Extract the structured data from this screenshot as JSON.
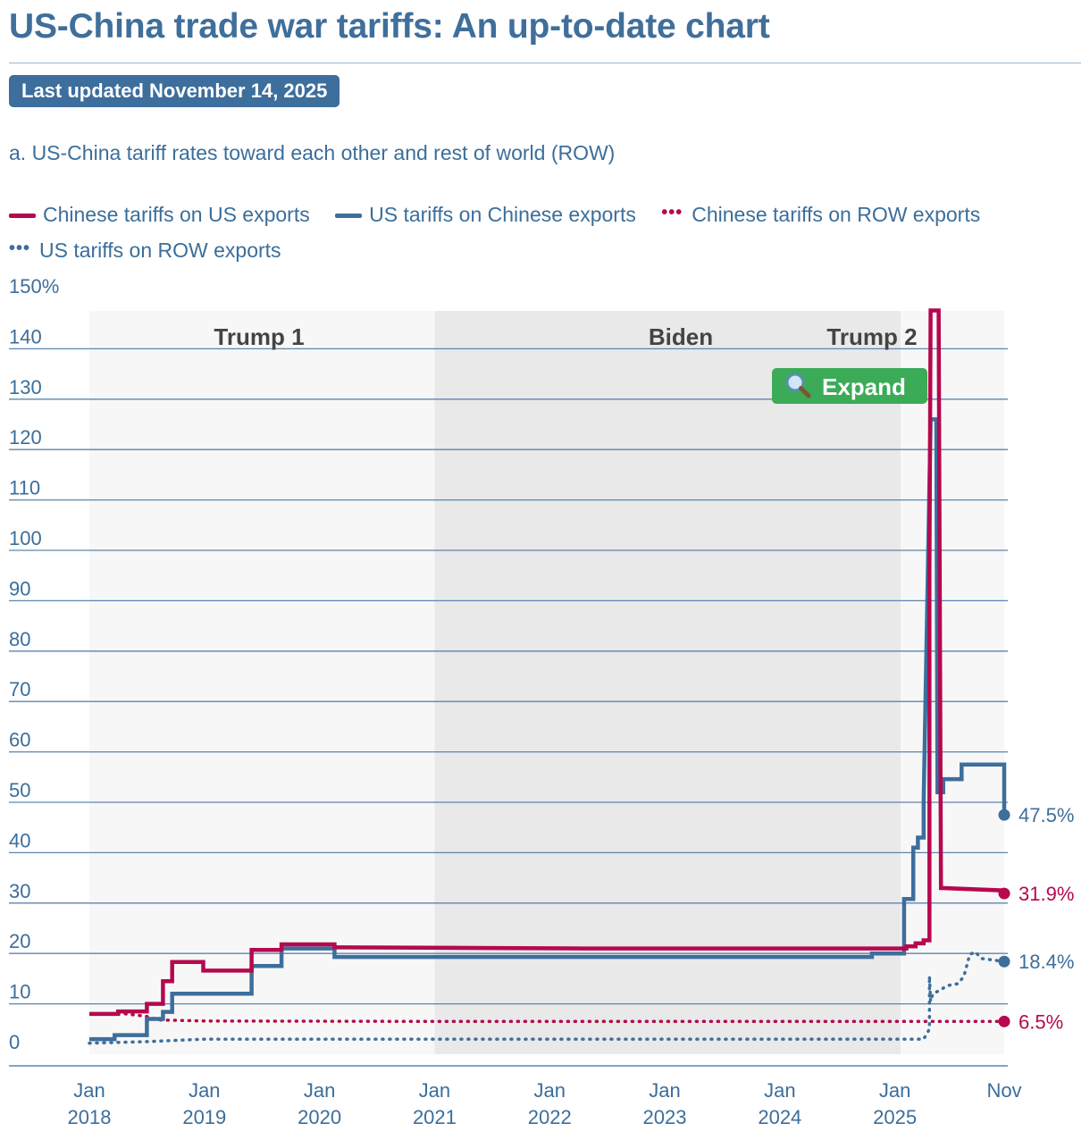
{
  "header": {
    "title": "US-China trade war tariffs: An up-to-date chart",
    "last_updated": "Last updated November 14, 2025",
    "subtitle": "a. US-China tariff rates toward each other and rest of world (ROW)"
  },
  "legend": [
    {
      "label": "Chinese tariffs on US exports",
      "style": "solid",
      "color": "#b5084f"
    },
    {
      "label": "US tariffs on Chinese exports",
      "style": "solid",
      "color": "#3d6e9c"
    },
    {
      "label": "Chinese tariffs on ROW exports",
      "style": "dotted",
      "color": "#b5084f"
    },
    {
      "label": "US tariffs on ROW exports",
      "style": "dotted",
      "color": "#3d6e9c"
    }
  ],
  "expand_button": {
    "icon": "magnifier-icon",
    "label": "Expand"
  },
  "colors": {
    "china": "#b5084f",
    "us": "#3d6e9c",
    "grid": "#5b86ad",
    "panel_light": "#f7f7f7",
    "panel_dark": "#e9e9e9"
  },
  "chart_data": {
    "type": "line",
    "title": "a. US-China tariff rates toward each other and rest of world (ROW)",
    "ylim": [
      0,
      150
    ],
    "y_ticks": [
      {
        "value": 0,
        "label": "0"
      },
      {
        "value": 10,
        "label": "10"
      },
      {
        "value": 20,
        "label": "20"
      },
      {
        "value": 30,
        "label": "30"
      },
      {
        "value": 40,
        "label": "40"
      },
      {
        "value": 50,
        "label": "50"
      },
      {
        "value": 60,
        "label": "60"
      },
      {
        "value": 70,
        "label": "70"
      },
      {
        "value": 80,
        "label": "80"
      },
      {
        "value": 90,
        "label": "90"
      },
      {
        "value": 100,
        "label": "100"
      },
      {
        "value": 110,
        "label": "110"
      },
      {
        "value": 120,
        "label": "120"
      },
      {
        "value": 130,
        "label": "130"
      },
      {
        "value": 140,
        "label": "140"
      },
      {
        "value": 150,
        "label": "150%"
      }
    ],
    "xlim": [
      2018.0,
      2025.95
    ],
    "x_ticks": [
      {
        "value": 2018.0,
        "line1": "Jan",
        "line2": "2018"
      },
      {
        "value": 2019.0,
        "line1": "Jan",
        "line2": "2019"
      },
      {
        "value": 2020.0,
        "line1": "Jan",
        "line2": "2020"
      },
      {
        "value": 2021.0,
        "line1": "Jan",
        "line2": "2021"
      },
      {
        "value": 2022.0,
        "line1": "Jan",
        "line2": "2022"
      },
      {
        "value": 2023.0,
        "line1": "Jan",
        "line2": "2023"
      },
      {
        "value": 2024.0,
        "line1": "Jan",
        "line2": "2024"
      },
      {
        "value": 2025.0,
        "line1": "Jan",
        "line2": "2025"
      },
      {
        "value": 2025.95,
        "line1": "Nov",
        "line2": ""
      }
    ],
    "periods": [
      {
        "name": "Trump 1",
        "start": 2018.0,
        "end": 2021.0,
        "shade": "light"
      },
      {
        "name": "Biden",
        "start": 2021.0,
        "end": 2025.05,
        "shade": "dark"
      },
      {
        "name": "Trump 2",
        "start": 2025.05,
        "end": 2025.95,
        "shade": "light"
      }
    ],
    "series": [
      {
        "name": "Chinese tariffs on US exports",
        "style": "solid",
        "color": "#b5084f",
        "end_label": "31.9%",
        "points": [
          [
            2018.0,
            8.0
          ],
          [
            2018.25,
            8.0
          ],
          [
            2018.25,
            8.5
          ],
          [
            2018.5,
            8.5
          ],
          [
            2018.5,
            10.0
          ],
          [
            2018.64,
            10.0
          ],
          [
            2018.64,
            14.5
          ],
          [
            2018.72,
            14.5
          ],
          [
            2018.72,
            18.3
          ],
          [
            2018.99,
            18.3
          ],
          [
            2018.99,
            16.6
          ],
          [
            2019.41,
            16.6
          ],
          [
            2019.41,
            20.7
          ],
          [
            2019.67,
            20.7
          ],
          [
            2019.67,
            21.8
          ],
          [
            2020.13,
            21.8
          ],
          [
            2020.13,
            21.2
          ],
          [
            2021.3,
            21.1
          ],
          [
            2022.3,
            21.0
          ],
          [
            2023.0,
            21.0
          ],
          [
            2024.0,
            21.0
          ],
          [
            2025.1,
            21.0
          ],
          [
            2025.1,
            21.4
          ],
          [
            2025.18,
            21.4
          ],
          [
            2025.18,
            22.0
          ],
          [
            2025.25,
            22.0
          ],
          [
            2025.25,
            22.6
          ],
          [
            2025.3,
            22.6
          ],
          [
            2025.3,
            96.0
          ],
          [
            2025.31,
            147.6
          ],
          [
            2025.38,
            147.6
          ],
          [
            2025.4,
            33.0
          ],
          [
            2025.95,
            32.5
          ],
          [
            2025.95,
            31.9
          ]
        ]
      },
      {
        "name": "US tariffs on Chinese exports",
        "style": "solid",
        "color": "#3d6e9c",
        "end_label": "47.5%",
        "points": [
          [
            2018.0,
            3.0
          ],
          [
            2018.22,
            3.0
          ],
          [
            2018.22,
            3.8
          ],
          [
            2018.5,
            3.8
          ],
          [
            2018.5,
            7.0
          ],
          [
            2018.64,
            7.0
          ],
          [
            2018.64,
            8.4
          ],
          [
            2018.72,
            8.4
          ],
          [
            2018.72,
            12.0
          ],
          [
            2019.09,
            12.0
          ],
          [
            2019.09,
            12.0
          ],
          [
            2019.41,
            12.0
          ],
          [
            2019.41,
            17.5
          ],
          [
            2019.67,
            17.5
          ],
          [
            2019.67,
            21.0
          ],
          [
            2020.13,
            21.0
          ],
          [
            2020.13,
            19.3
          ],
          [
            2021.0,
            19.3
          ],
          [
            2023.0,
            19.3
          ],
          [
            2024.8,
            19.3
          ],
          [
            2024.8,
            20.0
          ],
          [
            2025.08,
            20.0
          ],
          [
            2025.08,
            30.8
          ],
          [
            2025.16,
            30.8
          ],
          [
            2025.16,
            41.0
          ],
          [
            2025.2,
            41.0
          ],
          [
            2025.2,
            43.0
          ],
          [
            2025.25,
            43.0
          ],
          [
            2025.25,
            50.0
          ],
          [
            2025.31,
            126.0
          ],
          [
            2025.36,
            126.0
          ],
          [
            2025.37,
            52.0
          ],
          [
            2025.42,
            52.0
          ],
          [
            2025.42,
            54.6
          ],
          [
            2025.58,
            54.6
          ],
          [
            2025.58,
            57.5
          ],
          [
            2025.95,
            57.5
          ],
          [
            2025.95,
            47.5
          ]
        ]
      },
      {
        "name": "Chinese tariffs on ROW exports",
        "style": "dotted",
        "color": "#b5084f",
        "end_label": "6.5%",
        "points": [
          [
            2018.25,
            8.2
          ],
          [
            2018.5,
            7.5
          ],
          [
            2018.6,
            6.8
          ],
          [
            2019.0,
            6.6
          ],
          [
            2021.0,
            6.5
          ],
          [
            2025.95,
            6.5
          ]
        ]
      },
      {
        "name": "US tariffs on ROW exports",
        "style": "dotted",
        "color": "#3d6e9c",
        "end_label": "18.4%",
        "points": [
          [
            2018.0,
            2.2
          ],
          [
            2018.5,
            2.5
          ],
          [
            2019.0,
            3.0
          ],
          [
            2020.0,
            3.0
          ],
          [
            2024.0,
            3.0
          ],
          [
            2025.25,
            3.0
          ],
          [
            2025.3,
            5.0
          ],
          [
            2025.3,
            15.5
          ],
          [
            2025.31,
            10.5
          ],
          [
            2025.33,
            12.0
          ],
          [
            2025.4,
            12.8
          ],
          [
            2025.45,
            13.6
          ],
          [
            2025.55,
            14.0
          ],
          [
            2025.6,
            15.5
          ],
          [
            2025.65,
            19.8
          ],
          [
            2025.7,
            20.3
          ],
          [
            2025.75,
            19.0
          ],
          [
            2025.95,
            18.4
          ]
        ]
      }
    ]
  }
}
